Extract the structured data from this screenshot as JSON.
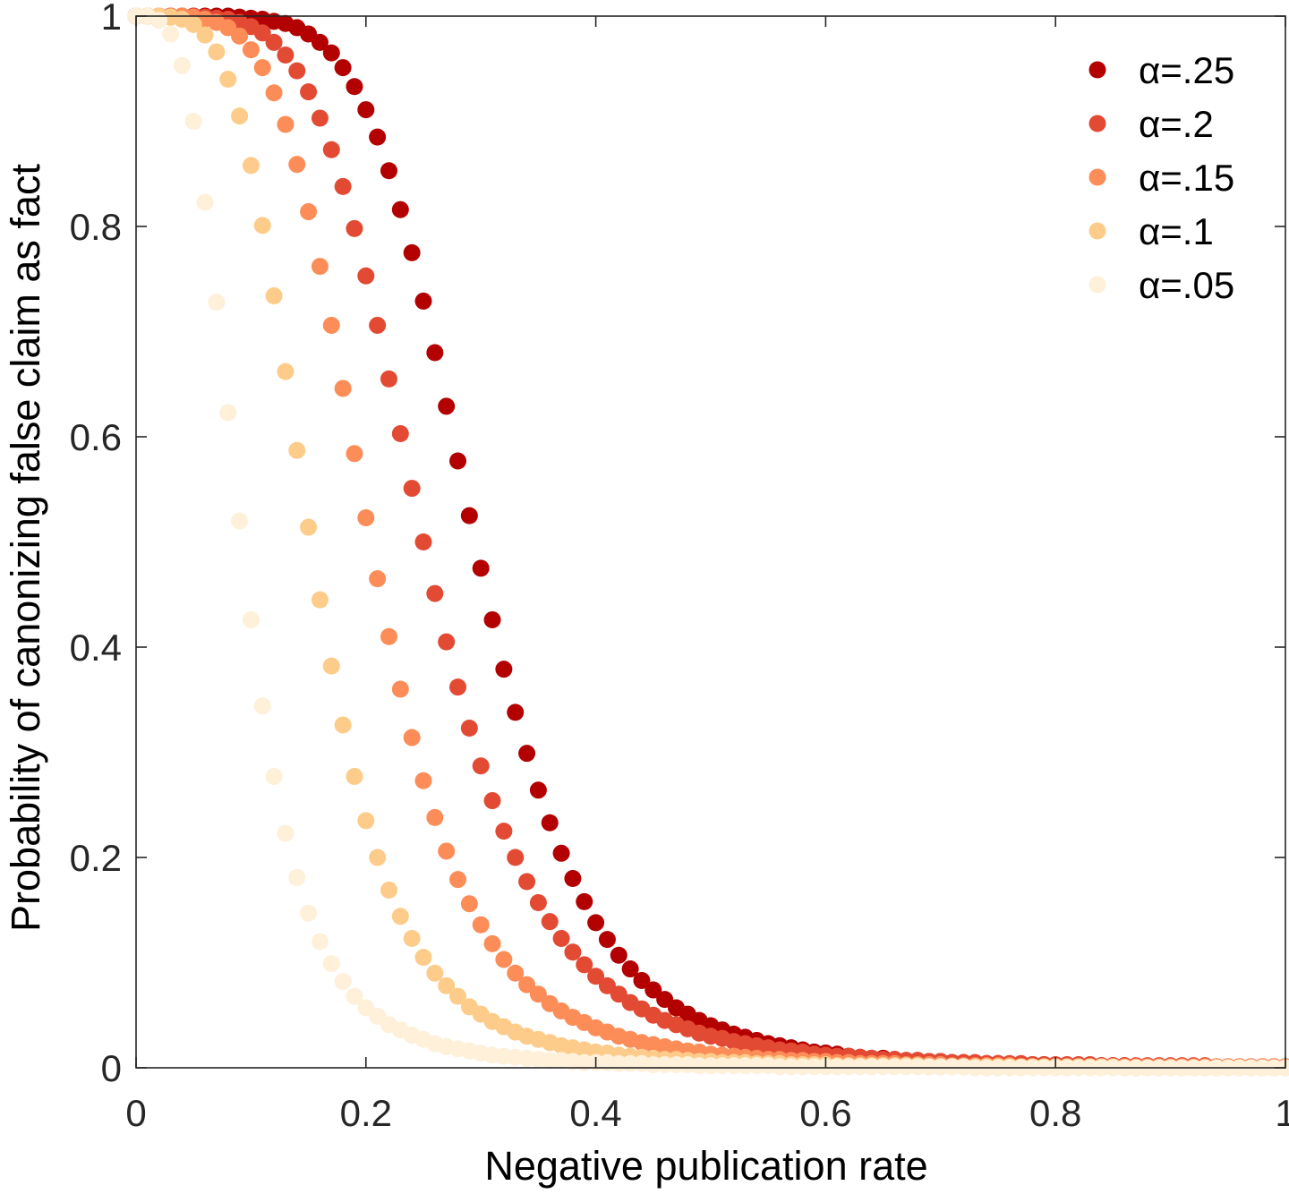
{
  "chart_data": {
    "type": "scatter",
    "title": "",
    "xlabel": "Negative publication rate",
    "ylabel": "Probability of canonizing false claim as fact",
    "xlim": [
      0,
      1
    ],
    "ylim": [
      0,
      1
    ],
    "xticks": [
      0,
      0.2,
      0.4,
      0.6,
      0.8,
      1
    ],
    "xtick_labels": [
      "0",
      "0.2",
      "0.4",
      "0.6",
      "0.8",
      "1"
    ],
    "yticks": [
      0,
      0.2,
      0.4,
      0.6,
      0.8,
      1
    ],
    "ytick_labels": [
      "0",
      "0.2",
      "0.4",
      "0.6",
      "0.8",
      "1"
    ],
    "grid": false,
    "legend_position": "top-right",
    "x": [
      0,
      0.01,
      0.02,
      0.03,
      0.04,
      0.05,
      0.06,
      0.07,
      0.08,
      0.09,
      0.1,
      0.11,
      0.12,
      0.13,
      0.14,
      0.15,
      0.16,
      0.17,
      0.18,
      0.19,
      0.2,
      0.21,
      0.22,
      0.23,
      0.24,
      0.25,
      0.26,
      0.27,
      0.28,
      0.29,
      0.3,
      0.31,
      0.32,
      0.33,
      0.34,
      0.35,
      0.36,
      0.37,
      0.38,
      0.39,
      0.4,
      0.41,
      0.42,
      0.43,
      0.44,
      0.45,
      0.46,
      0.47,
      0.48,
      0.49,
      0.5,
      0.51,
      0.52,
      0.53,
      0.54,
      0.55,
      0.56,
      0.57,
      0.58,
      0.59,
      0.6,
      0.61,
      0.62,
      0.63,
      0.64,
      0.65,
      0.66,
      0.67,
      0.68,
      0.69,
      0.7,
      0.71,
      0.72,
      0.73,
      0.74,
      0.75,
      0.76,
      0.77,
      0.78,
      0.79,
      0.8,
      0.81,
      0.82,
      0.83,
      0.84,
      0.85,
      0.86,
      0.87,
      0.88,
      0.89,
      0.9,
      0.91,
      0.92,
      0.93,
      0.94,
      0.95,
      0.96,
      0.97,
      0.98,
      0.99,
      1
    ],
    "series": [
      {
        "name": "α=.25",
        "color": "#b30000",
        "values": [
          1,
          1,
          1,
          1,
          1,
          1,
          1,
          1,
          1,
          0.999,
          0.998,
          0.997,
          0.995,
          0.993,
          0.989,
          0.983,
          0.975,
          0.965,
          0.951,
          0.933,
          0.911,
          0.885,
          0.853,
          0.816,
          0.775,
          0.729,
          0.68,
          0.629,
          0.577,
          0.525,
          0.475,
          0.426,
          0.379,
          0.338,
          0.299,
          0.264,
          0.233,
          0.204,
          0.18,
          0.158,
          0.138,
          0.122,
          0.107,
          0.094,
          0.083,
          0.074,
          0.065,
          0.057,
          0.051,
          0.045,
          0.04,
          0.036,
          0.032,
          0.029,
          0.026,
          0.023,
          0.021,
          0.019,
          0.017,
          0.015,
          0.014,
          0.013,
          0.011,
          0.01,
          0.009,
          0.009,
          0.008,
          0.007,
          0.007,
          0.006,
          0.006,
          0.005,
          0.005,
          0.004,
          0.004,
          0.004,
          0.003,
          0.003,
          0.003,
          0.003,
          0.002,
          0.002,
          0.002,
          0.002,
          0.002,
          0.002,
          0.002,
          0.001,
          0.001,
          0.001,
          0.001,
          0.001,
          0.001,
          0.001,
          0.001,
          0.001,
          0.001,
          0.001,
          0.001,
          0.001,
          0.001
        ]
      },
      {
        "name": "α=.2",
        "color": "#e34a33",
        "values": [
          1,
          1,
          1,
          1,
          1,
          1,
          0.999,
          0.998,
          0.997,
          0.994,
          0.99,
          0.984,
          0.975,
          0.963,
          0.948,
          0.928,
          0.903,
          0.873,
          0.838,
          0.798,
          0.753,
          0.706,
          0.655,
          0.603,
          0.551,
          0.5,
          0.451,
          0.405,
          0.362,
          0.323,
          0.287,
          0.254,
          0.225,
          0.2,
          0.177,
          0.157,
          0.139,
          0.123,
          0.11,
          0.098,
          0.087,
          0.078,
          0.07,
          0.062,
          0.056,
          0.05,
          0.045,
          0.041,
          0.037,
          0.033,
          0.03,
          0.028,
          0.025,
          0.023,
          0.021,
          0.019,
          0.017,
          0.016,
          0.015,
          0.013,
          0.012,
          0.011,
          0.011,
          0.01,
          0.009,
          0.008,
          0.008,
          0.007,
          0.007,
          0.006,
          0.006,
          0.005,
          0.005,
          0.005,
          0.004,
          0.004,
          0.004,
          0.004,
          0.003,
          0.003,
          0.003,
          0.003,
          0.003,
          0.003,
          0.002,
          0.002,
          0.002,
          0.002,
          0.002,
          0.002,
          0.002,
          0.002,
          0.002,
          0.002,
          0.001,
          0.001,
          0.001,
          0.001,
          0.001,
          0.001,
          0.001
        ]
      },
      {
        "name": "α=.15",
        "color": "#fc8d59",
        "values": [
          1,
          1,
          1,
          1,
          1,
          0.999,
          0.997,
          0.994,
          0.989,
          0.981,
          0.968,
          0.951,
          0.927,
          0.897,
          0.859,
          0.814,
          0.762,
          0.706,
          0.646,
          0.584,
          0.523,
          0.465,
          0.41,
          0.36,
          0.314,
          0.273,
          0.238,
          0.206,
          0.179,
          0.156,
          0.136,
          0.118,
          0.103,
          0.09,
          0.079,
          0.07,
          0.061,
          0.054,
          0.048,
          0.043,
          0.038,
          0.034,
          0.03,
          0.027,
          0.024,
          0.022,
          0.02,
          0.018,
          0.016,
          0.015,
          0.013,
          0.012,
          0.011,
          0.01,
          0.009,
          0.008,
          0.008,
          0.007,
          0.007,
          0.006,
          0.006,
          0.005,
          0.005,
          0.004,
          0.004,
          0.004,
          0.004,
          0.003,
          0.003,
          0.003,
          0.003,
          0.002,
          0.002,
          0.002,
          0.002,
          0.002,
          0.002,
          0.001,
          0.001,
          0.001,
          0.001,
          0.001,
          0.001,
          0.001,
          0.001,
          0.001,
          0.001,
          0.001,
          0.001,
          0.001,
          0.001,
          0.001,
          0.001,
          0.001,
          0.001,
          0.001,
          0.001,
          0.001,
          0.001,
          0.001,
          0.001
        ]
      },
      {
        "name": "α=.1",
        "color": "#fdcc8a",
        "values": [
          1,
          1,
          1,
          0.999,
          0.997,
          0.992,
          0.982,
          0.966,
          0.94,
          0.905,
          0.858,
          0.801,
          0.734,
          0.662,
          0.587,
          0.514,
          0.445,
          0.382,
          0.326,
          0.277,
          0.235,
          0.2,
          0.169,
          0.144,
          0.123,
          0.105,
          0.09,
          0.078,
          0.068,
          0.058,
          0.051,
          0.044,
          0.039,
          0.034,
          0.03,
          0.027,
          0.024,
          0.021,
          0.019,
          0.017,
          0.015,
          0.014,
          0.012,
          0.011,
          0.01,
          0.009,
          0.008,
          0.008,
          0.007,
          0.006,
          0.006,
          0.005,
          0.005,
          0.005,
          0.004,
          0.004,
          0.004,
          0.003,
          0.003,
          0.003,
          0.003,
          0.002,
          0.002,
          0.002,
          0.002,
          0.002,
          0.002,
          0.002,
          0.002,
          0.001,
          0.001,
          0.001,
          0.001,
          0.001,
          0.001,
          0.001,
          0.001,
          0.001,
          0.001,
          0.001,
          0.001,
          0.001,
          0.001,
          0.001,
          0.001,
          0.001,
          0,
          0,
          0,
          0,
          0,
          0,
          0,
          0,
          0,
          0,
          0,
          0,
          0,
          0,
          0
        ]
      },
      {
        "name": "α=.05",
        "color": "#fef0d9",
        "values": [
          1,
          1,
          0.996,
          0.983,
          0.953,
          0.9,
          0.823,
          0.728,
          0.623,
          0.52,
          0.426,
          0.344,
          0.277,
          0.223,
          0.181,
          0.147,
          0.12,
          0.099,
          0.082,
          0.068,
          0.057,
          0.049,
          0.041,
          0.036,
          0.031,
          0.027,
          0.023,
          0.02,
          0.018,
          0.016,
          0.014,
          0.012,
          0.011,
          0.01,
          0.009,
          0.008,
          0.007,
          0.007,
          0.006,
          0.005,
          0.005,
          0.005,
          0.004,
          0.004,
          0.004,
          0.003,
          0.003,
          0.003,
          0.003,
          0.002,
          0.002,
          0.002,
          0.002,
          0.002,
          0.002,
          0.002,
          0.001,
          0.001,
          0.001,
          0.001,
          0.001,
          0.001,
          0.001,
          0.001,
          0.001,
          0.001,
          0.001,
          0.001,
          0.001,
          0.001,
          0.001,
          0.001,
          0.001,
          0,
          0,
          0,
          0,
          0,
          0,
          0,
          0,
          0,
          0,
          0,
          0,
          0,
          0,
          0,
          0,
          0,
          0,
          0,
          0,
          0,
          0,
          0,
          0,
          0,
          0,
          0,
          0
        ]
      }
    ]
  }
}
